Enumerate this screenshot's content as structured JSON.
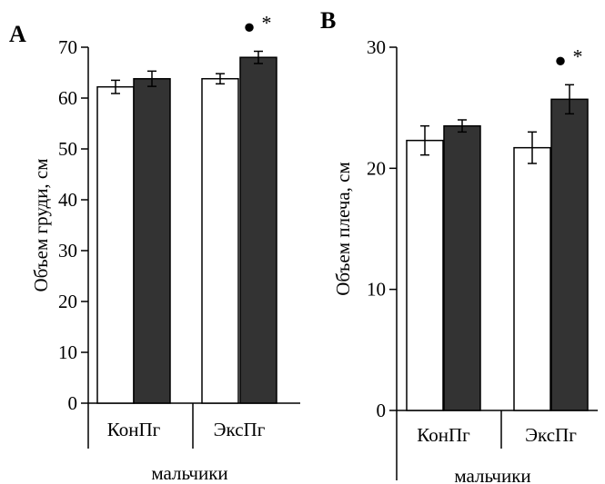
{
  "chart_data": [
    {
      "type": "bar",
      "panel_label": "A",
      "ylabel": "Объем груди, см",
      "ylim": [
        0,
        70
      ],
      "yticks": [
        0,
        10,
        20,
        30,
        40,
        50,
        60,
        70
      ],
      "categories": [
        "КонПг",
        "ЭксПг"
      ],
      "group_label": "мальчики",
      "colors": [
        "#ffffff",
        "#333333"
      ],
      "series": [
        {
          "values": [
            62.2,
            63.8
          ],
          "errors": [
            1.3,
            1.0
          ]
        },
        {
          "values": [
            63.8,
            68.0
          ],
          "errors": [
            1.5,
            1.2
          ]
        }
      ],
      "annotations": [
        {
          "category": 1,
          "series": 1,
          "symbols": [
            "●",
            "*"
          ]
        }
      ]
    },
    {
      "type": "bar",
      "panel_label": "B",
      "ylabel": "Объем плеча, см",
      "ylim": [
        0,
        30
      ],
      "yticks": [
        0,
        10,
        20,
        30
      ],
      "categories": [
        "КонПг",
        "ЭксПг"
      ],
      "group_label": "мальчики",
      "colors": [
        "#ffffff",
        "#333333"
      ],
      "series": [
        {
          "values": [
            22.3,
            21.7
          ],
          "errors": [
            1.2,
            1.3
          ]
        },
        {
          "values": [
            23.5,
            25.7
          ],
          "errors": [
            0.5,
            1.2
          ]
        }
      ],
      "annotations": [
        {
          "category": 1,
          "series": 1,
          "symbols": [
            "●",
            "*"
          ]
        }
      ]
    }
  ]
}
